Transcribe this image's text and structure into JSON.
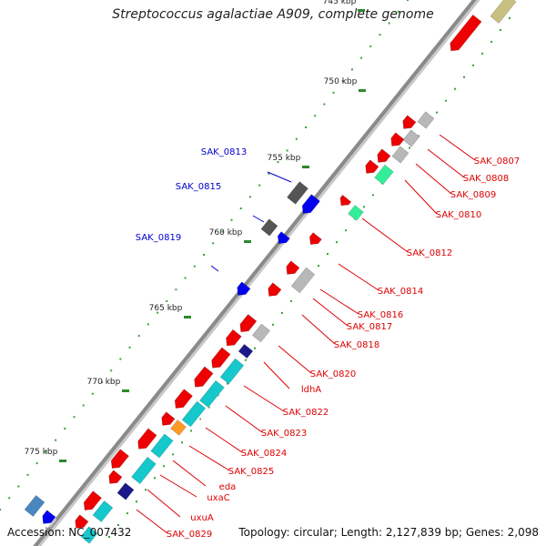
{
  "title": "Streptococcus agalactiae A909, complete genome",
  "accession": "Accession: NC_007432",
  "topology": "Topology: circular; Length: 2,127,839 bp; Genes: 2,098",
  "kbp_ticks": [
    {
      "label": "745 kbp",
      "kbp": 745
    },
    {
      "label": "750 kbp",
      "kbp": 750
    },
    {
      "label": "755 kbp",
      "kbp": 755
    },
    {
      "label": "760 kbp",
      "kbp": 760
    },
    {
      "label": "765 kbp",
      "kbp": 765
    },
    {
      "label": "770 kbp",
      "kbp": 770
    },
    {
      "label": "775 kbp",
      "kbp": 775
    }
  ],
  "gene_labels_blue": [
    "SAK_0813",
    "SAK_0815",
    "SAK_0819"
  ],
  "gene_labels_red": [
    "SAK_0807",
    "SAK_0808",
    "SAK_0809",
    "SAK_0810",
    "SAK_0812",
    "SAK_0814",
    "SAK_0816",
    "SAK_0817",
    "SAK_0818",
    "SAK_0820",
    "ldhA",
    "SAK_0822",
    "SAK_0823",
    "SAK_0824",
    "SAK_0825",
    "eda",
    "uxaC",
    "uxuA",
    "SAK_0829"
  ],
  "colors": {
    "forward": "#ee0000",
    "reverse": "#0000ee",
    "label_red": "#dd0000",
    "label_blue": "#0000cc",
    "gray": "#b8b8b8",
    "dark_gray": "#555555",
    "cyan": "#14c8cc",
    "teal_green": "#33ee99",
    "orange": "#ff9922",
    "navy": "#1a1a8a",
    "olive": "#c8c080",
    "tick_green": "#2a8a2a"
  }
}
